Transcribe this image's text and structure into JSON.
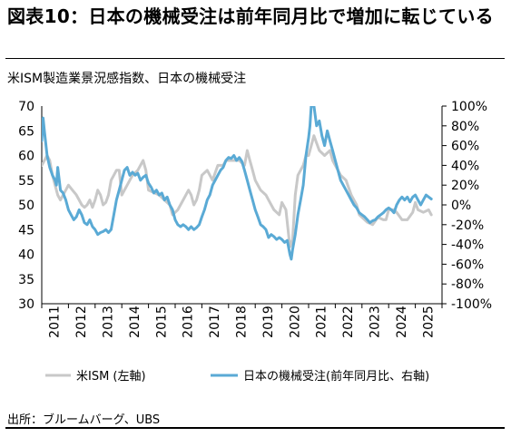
{
  "title": "図表10：日本の機械受注は前年同月比で増加に転じている",
  "source": "出所：ブルームバーグ、UBS",
  "chart_data": {
    "type": "line",
    "title": "米ISM製造業景況感指数、日本の機械受注",
    "left_axis": {
      "min": 30,
      "max": 70,
      "ticks": [
        30,
        35,
        40,
        45,
        50,
        55,
        60,
        65,
        70
      ]
    },
    "right_axis": {
      "min": -100,
      "max": 100,
      "ticks": [
        -100,
        -80,
        -60,
        -40,
        -20,
        0,
        20,
        40,
        60,
        80,
        100
      ],
      "tick_labels": [
        "-100%",
        "-80%",
        "-60%",
        "-40%",
        "-20%",
        "0%",
        "20%",
        "40%",
        "60%",
        "80%",
        "100%"
      ]
    },
    "x_axis": {
      "min": 2011.0,
      "max": 2026.0,
      "year_labels": [
        "2011",
        "2012",
        "2013",
        "2014",
        "2015",
        "2016",
        "2017",
        "2018",
        "2019",
        "2020",
        "2021",
        "2022",
        "2023",
        "2024",
        "2025"
      ]
    },
    "legend_position": "bottom",
    "series": [
      {
        "name": "米ISM (左軸)",
        "axis": "left",
        "color": "#c8c8c8",
        "points": [
          [
            2011.0,
            58
          ],
          [
            2011.1,
            59
          ],
          [
            2011.2,
            60
          ],
          [
            2011.3,
            59
          ],
          [
            2011.4,
            56
          ],
          [
            2011.5,
            54
          ],
          [
            2011.6,
            52
          ],
          [
            2011.7,
            51
          ],
          [
            2011.8,
            52
          ],
          [
            2011.9,
            53
          ],
          [
            2012.0,
            54
          ],
          [
            2012.15,
            53
          ],
          [
            2012.3,
            52
          ],
          [
            2012.4,
            51
          ],
          [
            2012.5,
            50
          ],
          [
            2012.6,
            49.5
          ],
          [
            2012.7,
            50
          ],
          [
            2012.8,
            51
          ],
          [
            2012.9,
            49.5
          ],
          [
            2013.0,
            51
          ],
          [
            2013.1,
            53
          ],
          [
            2013.2,
            52
          ],
          [
            2013.3,
            50
          ],
          [
            2013.4,
            50.5
          ],
          [
            2013.5,
            52
          ],
          [
            2013.6,
            55
          ],
          [
            2013.7,
            56
          ],
          [
            2013.8,
            57
          ],
          [
            2013.9,
            57
          ],
          [
            2014.0,
            52
          ],
          [
            2014.2,
            54
          ],
          [
            2014.4,
            56
          ],
          [
            2014.6,
            57
          ],
          [
            2014.8,
            59
          ],
          [
            2014.9,
            57
          ],
          [
            2015.0,
            53
          ],
          [
            2015.2,
            52.5
          ],
          [
            2015.4,
            52
          ],
          [
            2015.6,
            51
          ],
          [
            2015.8,
            50
          ],
          [
            2015.9,
            48
          ],
          [
            2016.0,
            48.5
          ],
          [
            2016.1,
            49
          ],
          [
            2016.3,
            51
          ],
          [
            2016.5,
            53
          ],
          [
            2016.6,
            52
          ],
          [
            2016.7,
            50
          ],
          [
            2016.8,
            51
          ],
          [
            2016.9,
            53
          ],
          [
            2017.0,
            56
          ],
          [
            2017.2,
            57
          ],
          [
            2017.4,
            55
          ],
          [
            2017.6,
            58
          ],
          [
            2017.8,
            58
          ],
          [
            2017.9,
            59
          ],
          [
            2018.0,
            59
          ],
          [
            2018.2,
            59
          ],
          [
            2018.4,
            59
          ],
          [
            2018.6,
            58
          ],
          [
            2018.7,
            61
          ],
          [
            2018.8,
            59
          ],
          [
            2018.9,
            57
          ],
          [
            2019.0,
            55
          ],
          [
            2019.2,
            53
          ],
          [
            2019.4,
            52
          ],
          [
            2019.5,
            51
          ],
          [
            2019.7,
            49
          ],
          [
            2019.9,
            48
          ],
          [
            2020.0,
            50.5
          ],
          [
            2020.15,
            49
          ],
          [
            2020.3,
            41.5
          ],
          [
            2020.4,
            43
          ],
          [
            2020.5,
            52
          ],
          [
            2020.6,
            56
          ],
          [
            2020.8,
            58
          ],
          [
            2020.9,
            60
          ],
          [
            2021.0,
            60
          ],
          [
            2021.2,
            64
          ],
          [
            2021.4,
            61
          ],
          [
            2021.6,
            60
          ],
          [
            2021.8,
            61
          ],
          [
            2021.9,
            59
          ],
          [
            2022.0,
            58
          ],
          [
            2022.2,
            56
          ],
          [
            2022.4,
            55
          ],
          [
            2022.6,
            52
          ],
          [
            2022.8,
            50
          ],
          [
            2022.9,
            48
          ],
          [
            2023.0,
            47.5
          ],
          [
            2023.2,
            46.5
          ],
          [
            2023.4,
            46
          ],
          [
            2023.6,
            47.5
          ],
          [
            2023.8,
            47
          ],
          [
            2023.9,
            47
          ],
          [
            2024.0,
            49
          ],
          [
            2024.2,
            49
          ],
          [
            2024.3,
            48.5
          ],
          [
            2024.5,
            47
          ],
          [
            2024.7,
            47
          ],
          [
            2024.9,
            48.5
          ],
          [
            2025.0,
            50.5
          ],
          [
            2025.1,
            49
          ],
          [
            2025.3,
            48.5
          ],
          [
            2025.5,
            49
          ],
          [
            2025.6,
            48
          ]
        ]
      },
      {
        "name": "日本の機械受注(前年同月比、右軸)",
        "axis": "right",
        "color": "#5aaad5",
        "points": [
          [
            2011.0,
            65
          ],
          [
            2011.05,
            88
          ],
          [
            2011.1,
            75
          ],
          [
            2011.2,
            50
          ],
          [
            2011.3,
            38
          ],
          [
            2011.4,
            30
          ],
          [
            2011.5,
            25
          ],
          [
            2011.55,
            20
          ],
          [
            2011.6,
            38
          ],
          [
            2011.7,
            15
          ],
          [
            2011.8,
            12
          ],
          [
            2011.9,
            5
          ],
          [
            2012.0,
            -5
          ],
          [
            2012.1,
            -10
          ],
          [
            2012.2,
            -15
          ],
          [
            2012.3,
            -12
          ],
          [
            2012.4,
            -5
          ],
          [
            2012.5,
            -10
          ],
          [
            2012.6,
            -18
          ],
          [
            2012.7,
            -20
          ],
          [
            2012.8,
            -15
          ],
          [
            2012.9,
            -22
          ],
          [
            2013.0,
            -25
          ],
          [
            2013.1,
            -30
          ],
          [
            2013.2,
            -28
          ],
          [
            2013.3,
            -27
          ],
          [
            2013.4,
            -25
          ],
          [
            2013.5,
            -28
          ],
          [
            2013.6,
            -25
          ],
          [
            2013.7,
            -10
          ],
          [
            2013.8,
            5
          ],
          [
            2013.9,
            15
          ],
          [
            2014.0,
            25
          ],
          [
            2014.1,
            35
          ],
          [
            2014.2,
            38
          ],
          [
            2014.3,
            30
          ],
          [
            2014.4,
            33
          ],
          [
            2014.5,
            30
          ],
          [
            2014.6,
            32
          ],
          [
            2014.7,
            25
          ],
          [
            2014.8,
            28
          ],
          [
            2014.9,
            30
          ],
          [
            2015.0,
            22
          ],
          [
            2015.1,
            18
          ],
          [
            2015.2,
            12
          ],
          [
            2015.3,
            15
          ],
          [
            2015.4,
            10
          ],
          [
            2015.5,
            12
          ],
          [
            2015.6,
            5
          ],
          [
            2015.7,
            8
          ],
          [
            2015.8,
            0
          ],
          [
            2015.9,
            -5
          ],
          [
            2016.0,
            -15
          ],
          [
            2016.1,
            -20
          ],
          [
            2016.2,
            -22
          ],
          [
            2016.3,
            -20
          ],
          [
            2016.4,
            -22
          ],
          [
            2016.5,
            -25
          ],
          [
            2016.6,
            -22
          ],
          [
            2016.7,
            -25
          ],
          [
            2016.8,
            -23
          ],
          [
            2016.9,
            -20
          ],
          [
            2017.0,
            -12
          ],
          [
            2017.1,
            -5
          ],
          [
            2017.2,
            5
          ],
          [
            2017.3,
            10
          ],
          [
            2017.4,
            20
          ],
          [
            2017.5,
            25
          ],
          [
            2017.6,
            30
          ],
          [
            2017.7,
            35
          ],
          [
            2017.8,
            38
          ],
          [
            2017.9,
            45
          ],
          [
            2018.0,
            48
          ],
          [
            2018.1,
            47
          ],
          [
            2018.2,
            50
          ],
          [
            2018.3,
            45
          ],
          [
            2018.4,
            48
          ],
          [
            2018.5,
            44
          ],
          [
            2018.6,
            35
          ],
          [
            2018.7,
            25
          ],
          [
            2018.8,
            15
          ],
          [
            2018.9,
            5
          ],
          [
            2019.0,
            -5
          ],
          [
            2019.1,
            -12
          ],
          [
            2019.2,
            -20
          ],
          [
            2019.3,
            -22
          ],
          [
            2019.4,
            -25
          ],
          [
            2019.5,
            -33
          ],
          [
            2019.6,
            -30
          ],
          [
            2019.7,
            -32
          ],
          [
            2019.8,
            -35
          ],
          [
            2019.9,
            -33
          ],
          [
            2020.0,
            -35
          ],
          [
            2020.1,
            -38
          ],
          [
            2020.2,
            -36
          ],
          [
            2020.3,
            -50
          ],
          [
            2020.35,
            -55
          ],
          [
            2020.4,
            -45
          ],
          [
            2020.5,
            -30
          ],
          [
            2020.6,
            -10
          ],
          [
            2020.7,
            5
          ],
          [
            2020.8,
            20
          ],
          [
            2020.9,
            50
          ],
          [
            2021.0,
            68
          ],
          [
            2021.05,
            80
          ],
          [
            2021.1,
            100
          ],
          [
            2021.2,
            100
          ],
          [
            2021.3,
            80
          ],
          [
            2021.4,
            85
          ],
          [
            2021.5,
            70
          ],
          [
            2021.6,
            60
          ],
          [
            2021.7,
            75
          ],
          [
            2021.8,
            65
          ],
          [
            2021.9,
            55
          ],
          [
            2022.0,
            45
          ],
          [
            2022.1,
            35
          ],
          [
            2022.2,
            25
          ],
          [
            2022.3,
            20
          ],
          [
            2022.4,
            15
          ],
          [
            2022.5,
            10
          ],
          [
            2022.6,
            5
          ],
          [
            2022.7,
            0
          ],
          [
            2022.8,
            -3
          ],
          [
            2022.9,
            -8
          ],
          [
            2023.0,
            -10
          ],
          [
            2023.1,
            -12
          ],
          [
            2023.2,
            -15
          ],
          [
            2023.3,
            -18
          ],
          [
            2023.4,
            -16
          ],
          [
            2023.5,
            -15
          ],
          [
            2023.6,
            -12
          ],
          [
            2023.7,
            -10
          ],
          [
            2023.8,
            -8
          ],
          [
            2023.9,
            -5
          ],
          [
            2024.0,
            -3
          ],
          [
            2024.1,
            -5
          ],
          [
            2024.2,
            -8
          ],
          [
            2024.3,
            0
          ],
          [
            2024.4,
            5
          ],
          [
            2024.5,
            8
          ],
          [
            2024.6,
            5
          ],
          [
            2024.7,
            8
          ],
          [
            2024.8,
            3
          ],
          [
            2024.9,
            8
          ],
          [
            2025.0,
            10
          ],
          [
            2025.1,
            5
          ],
          [
            2025.2,
            0
          ],
          [
            2025.3,
            5
          ],
          [
            2025.4,
            10
          ],
          [
            2025.5,
            8
          ],
          [
            2025.6,
            6
          ]
        ]
      }
    ]
  }
}
